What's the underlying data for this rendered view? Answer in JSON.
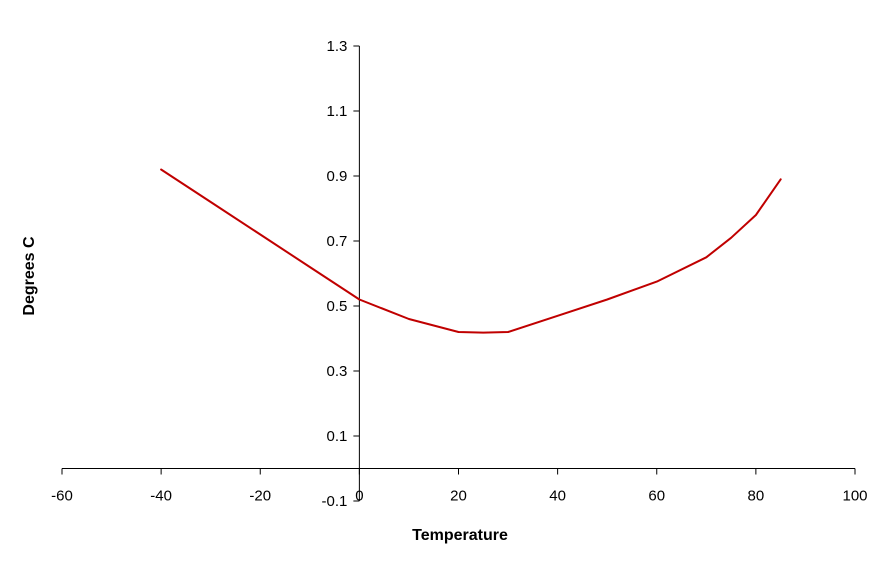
{
  "chart_data": {
    "type": "line",
    "title": "",
    "xlabel": "Temperature",
    "ylabel": "Degrees C",
    "xlim": [
      -60,
      100
    ],
    "ylim": [
      -0.1,
      1.3
    ],
    "x_ticks": [
      -60,
      -40,
      -20,
      0,
      20,
      40,
      60,
      80,
      100
    ],
    "y_ticks": [
      0.1,
      0.3,
      0.5,
      0.7,
      0.9,
      1.1,
      1.3
    ],
    "y_tick_labels": [
      "0.1",
      "0.3",
      "0.5",
      "0.7",
      "0.9",
      "1.1",
      "1.3"
    ],
    "y_min_label": "-0.1",
    "grid": false,
    "legend": "none",
    "series_color": "#c00000",
    "series": [
      {
        "x": [
          -40,
          -30,
          -20,
          -10,
          0,
          10,
          20,
          25,
          30,
          40,
          50,
          60,
          70,
          75,
          80,
          85
        ],
        "y": [
          0.92,
          0.82,
          0.72,
          0.62,
          0.52,
          0.46,
          0.42,
          0.418,
          0.42,
          0.47,
          0.52,
          0.575,
          0.65,
          0.71,
          0.78,
          0.89
        ]
      }
    ]
  }
}
